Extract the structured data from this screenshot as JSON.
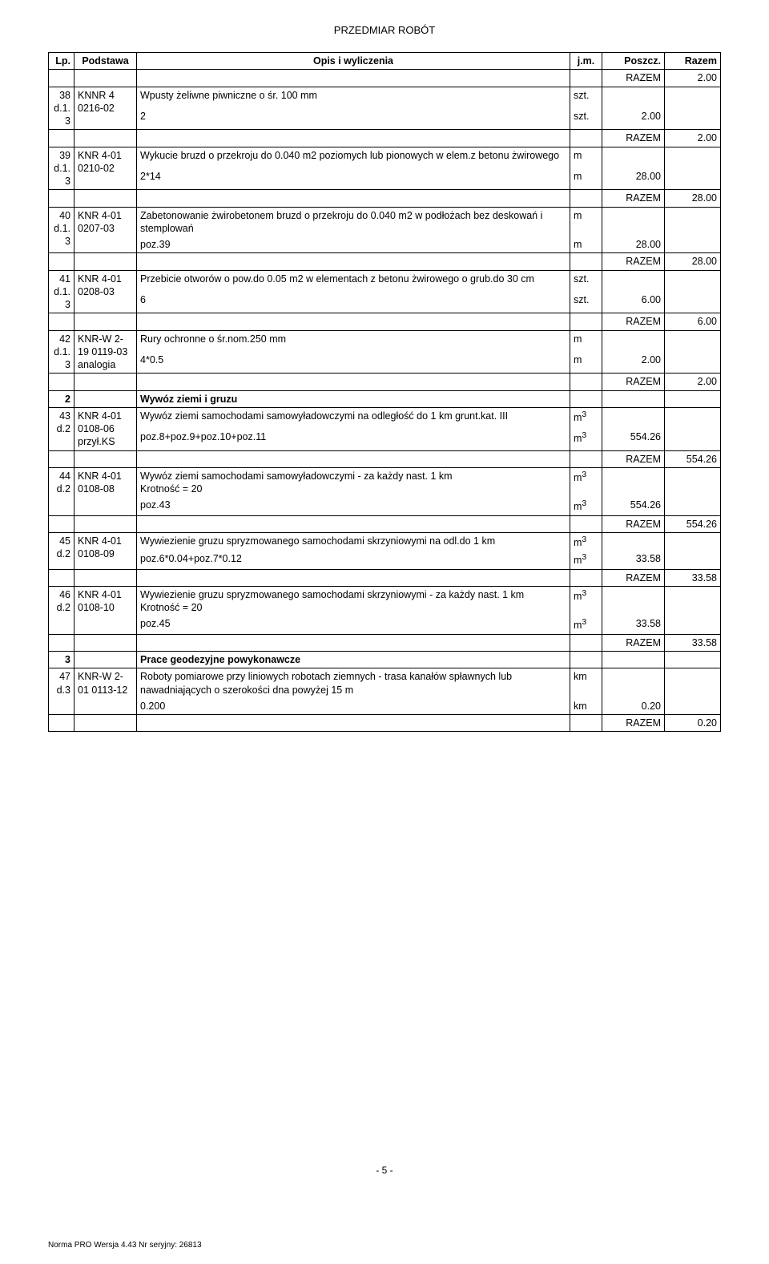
{
  "header": "PRZEDMIAR  ROBÓT",
  "columns": {
    "lp": "Lp.",
    "podstawa": "Podstawa",
    "opis": "Opis i wyliczenia",
    "jm": "j.m.",
    "poszcz": "Poszcz.",
    "razem": "Razem"
  },
  "razem_label": "RAZEM",
  "rows": [
    {
      "type": "razem",
      "value": "2.00"
    },
    {
      "type": "item",
      "lp": "38",
      "lpsub": "d.1.\n3",
      "base": "KNNR 4\n0216-02",
      "desc": "Wpusty żeliwne piwniczne o śr. 100 mm",
      "jm": "szt."
    },
    {
      "type": "calc",
      "expr": "2",
      "jm": "szt.",
      "val": "2.00"
    },
    {
      "type": "razem",
      "value": "2.00"
    },
    {
      "type": "item",
      "lp": "39",
      "lpsub": "d.1.\n3",
      "base": "KNR 4-01\n0210-02",
      "desc": "Wykucie bruzd o przekroju do 0.040 m2 poziomych lub pionowych w elem.z betonu żwirowego",
      "jm": "m"
    },
    {
      "type": "calc",
      "expr": "2*14",
      "jm": "m",
      "val": "28.00"
    },
    {
      "type": "razem",
      "value": "28.00"
    },
    {
      "type": "item",
      "lp": "40",
      "lpsub": "d.1.\n3",
      "base": "KNR 4-01\n0207-03",
      "desc": "Zabetonowanie żwirobetonem bruzd o przekroju do 0.040 m2 w podłożach bez deskowań i stemplowań",
      "jm": "m"
    },
    {
      "type": "calc",
      "expr": "poz.39",
      "jm": "m",
      "val": "28.00"
    },
    {
      "type": "razem",
      "value": "28.00"
    },
    {
      "type": "item",
      "lp": "41",
      "lpsub": "d.1.\n3",
      "base": "KNR 4-01\n0208-03",
      "desc": "Przebicie otworów o pow.do 0.05 m2 w elementach z betonu żwirowego o grub.do 30 cm",
      "jm": "szt."
    },
    {
      "type": "calc",
      "expr": "6",
      "jm": "szt.",
      "val": "6.00"
    },
    {
      "type": "razem",
      "value": "6.00"
    },
    {
      "type": "item",
      "lp": "42",
      "lpsub": "d.1.\n3",
      "base": "KNR-W 2-\n19 0119-03\nanalogia",
      "desc": "Rury ochronne o śr.nom.250 mm",
      "jm": "m"
    },
    {
      "type": "calc",
      "expr": "4*0.5",
      "jm": "m",
      "val": "2.00"
    },
    {
      "type": "razem",
      "value": "2.00"
    },
    {
      "type": "section",
      "num": "2",
      "title": "Wywóz ziemi i gruzu"
    },
    {
      "type": "item",
      "lp": "43",
      "lpsub": "d.2",
      "base": "KNR 4-01\n0108-06\nprzył.KS",
      "desc": "Wywóz ziemi samochodami samowyładowczymi na odległość do 1 km grunt.kat. III",
      "jm": "m3"
    },
    {
      "type": "calc",
      "expr": "poz.8+poz.9+poz.10+poz.11",
      "jm": "m3",
      "val": "554.26"
    },
    {
      "type": "razem",
      "value": "554.26"
    },
    {
      "type": "item",
      "lp": "44",
      "lpsub": "d.2",
      "base": "KNR 4-01\n0108-08",
      "desc": "Wywóz ziemi samochodami samowyładowczymi - za każdy nast. 1 km\nKrotność = 20",
      "jm": "m3"
    },
    {
      "type": "calc",
      "expr": "poz.43",
      "jm": "m3",
      "val": "554.26"
    },
    {
      "type": "razem",
      "value": "554.26"
    },
    {
      "type": "item",
      "lp": "45",
      "lpsub": "d.2",
      "base": "KNR 4-01\n0108-09",
      "desc": "Wywiezienie gruzu spryzmowanego samochodami skrzyniowymi na odl.do 1 km",
      "jm": "m3"
    },
    {
      "type": "calc",
      "expr": "poz.6*0.04+poz.7*0.12",
      "jm": "m3",
      "val": "33.58"
    },
    {
      "type": "razem",
      "value": "33.58"
    },
    {
      "type": "item",
      "lp": "46",
      "lpsub": "d.2",
      "base": "KNR 4-01\n0108-10",
      "desc": "Wywiezienie gruzu spryzmowanego samochodami skrzyniowymi - za każdy nast. 1 km\nKrotność = 20",
      "jm": "m3"
    },
    {
      "type": "calc",
      "expr": "poz.45",
      "jm": "m3",
      "val": "33.58"
    },
    {
      "type": "razem",
      "value": "33.58"
    },
    {
      "type": "section",
      "num": "3",
      "title": "Prace geodezyjne powykonawcze"
    },
    {
      "type": "item",
      "lp": "47",
      "lpsub": "d.3",
      "base": "KNR-W 2-\n01 0113-12",
      "desc": "Roboty pomiarowe przy liniowych robotach ziemnych - trasa kanałów spławnych lub nawadniających o szerokości dna powyżej 15 m",
      "jm": "km"
    },
    {
      "type": "calc",
      "expr": "0.200",
      "jm": "km",
      "val": "0.20"
    },
    {
      "type": "razem",
      "value": "0.20"
    }
  ],
  "page_num": "- 5 -",
  "footer_note": "Norma PRO Wersja 4.43 Nr seryjny: 26813"
}
